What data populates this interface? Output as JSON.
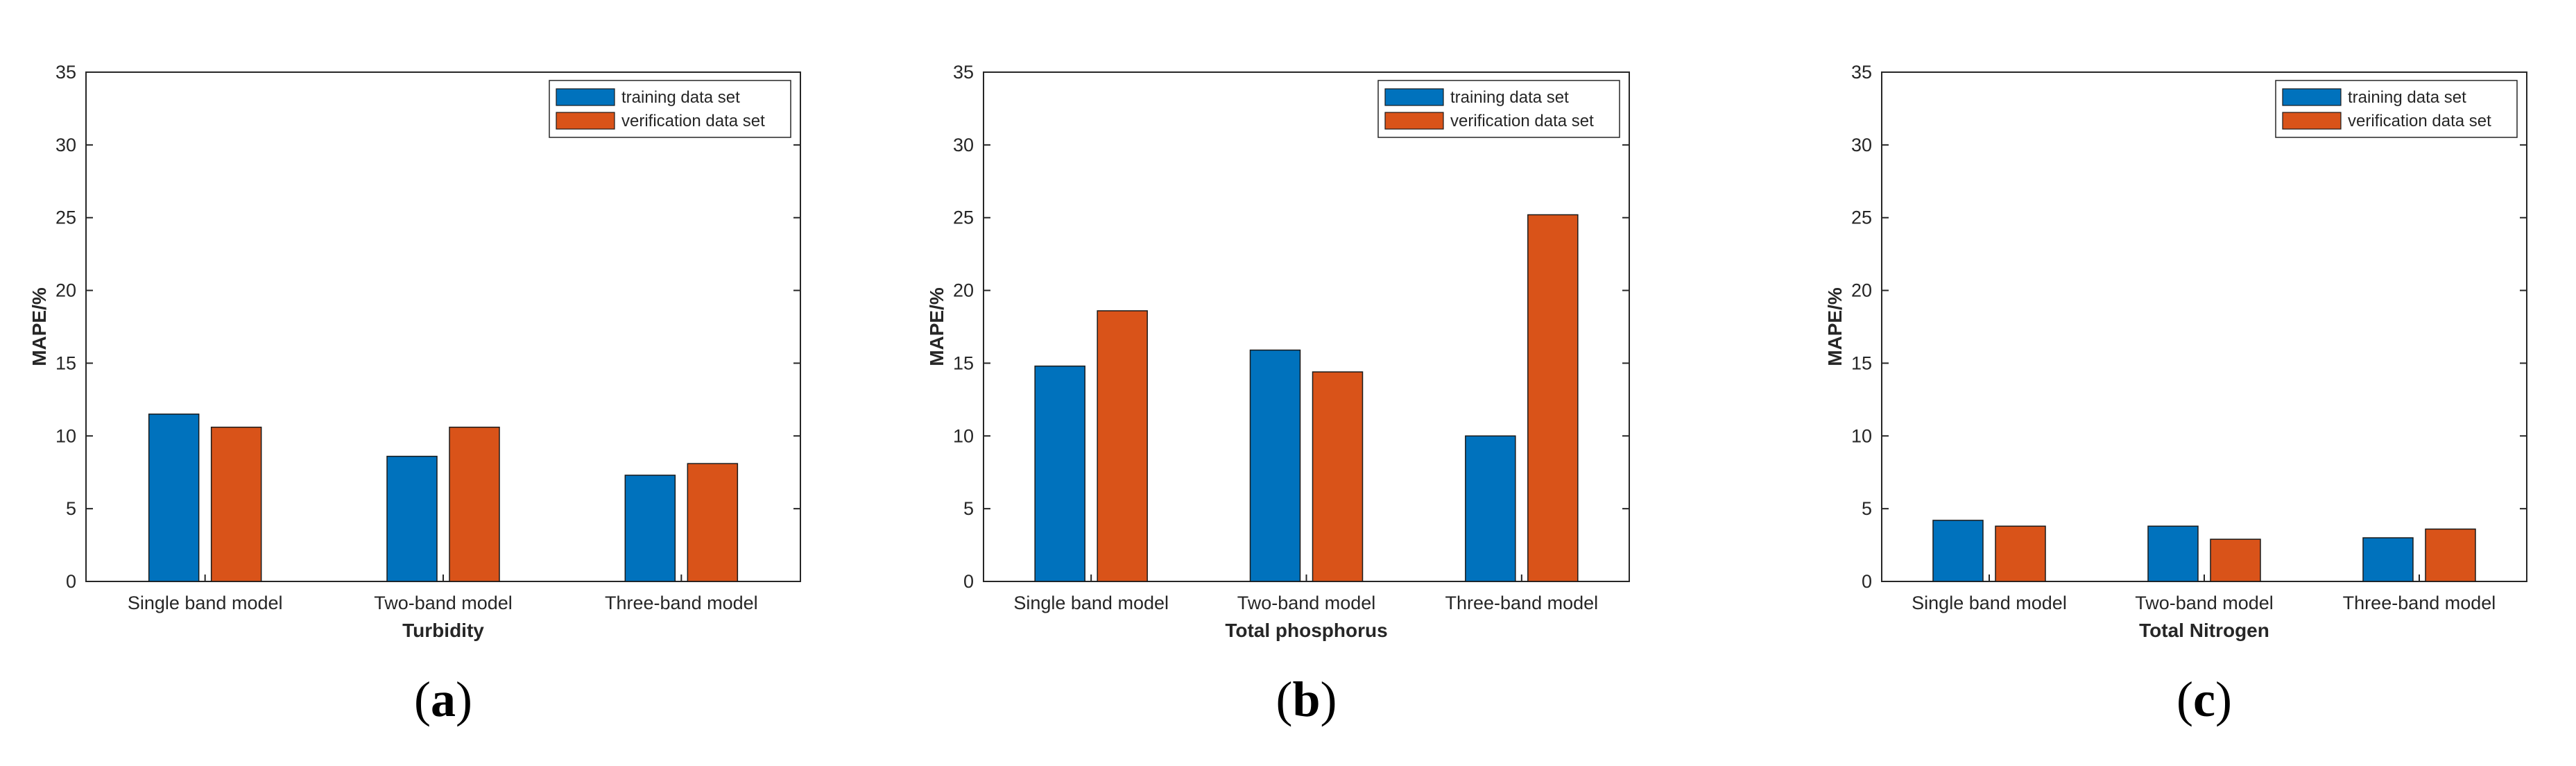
{
  "chart_data": [
    {
      "type": "bar",
      "categories": [
        "Single band model",
        "Two-band model",
        "Three-band model"
      ],
      "series": [
        {
          "name": "training data set",
          "values": [
            11.5,
            8.6,
            7.3
          ]
        },
        {
          "name": "verification data set",
          "values": [
            10.6,
            10.6,
            8.1
          ]
        }
      ],
      "xlabel": "Turbidity",
      "ylabel": "MAPE/%",
      "ylim": [
        0,
        35
      ],
      "yticks": [
        0,
        5,
        10,
        15,
        20,
        25,
        30,
        35
      ],
      "legend": "top-right",
      "panel_label": "a"
    },
    {
      "type": "bar",
      "categories": [
        "Single band model",
        "Two-band model",
        "Three-band model"
      ],
      "series": [
        {
          "name": "training data set",
          "values": [
            14.8,
            15.9,
            10.0
          ]
        },
        {
          "name": "verification data set",
          "values": [
            18.6,
            14.4,
            25.2
          ]
        }
      ],
      "xlabel": "Total phosphorus",
      "ylabel": "MAPE/%",
      "ylim": [
        0,
        35
      ],
      "yticks": [
        0,
        5,
        10,
        15,
        20,
        25,
        30,
        35
      ],
      "legend": "top-right",
      "panel_label": "b"
    },
    {
      "type": "bar",
      "categories": [
        "Single band model",
        "Two-band model",
        "Three-band model"
      ],
      "series": [
        {
          "name": "training data set",
          "values": [
            4.2,
            3.8,
            3.0
          ]
        },
        {
          "name": "verification data set",
          "values": [
            3.8,
            2.9,
            3.6
          ]
        }
      ],
      "xlabel": "Total Nitrogen",
      "ylabel": "MAPE/%",
      "ylim": [
        0,
        35
      ],
      "yticks": [
        0,
        5,
        10,
        15,
        20,
        25,
        30,
        35
      ],
      "legend": "top-right",
      "panel_label": "c"
    }
  ],
  "colors": {
    "training": "#0072BD",
    "verification": "#D95319",
    "axis": "#262626",
    "bar_edge": "#1a1a1a"
  }
}
